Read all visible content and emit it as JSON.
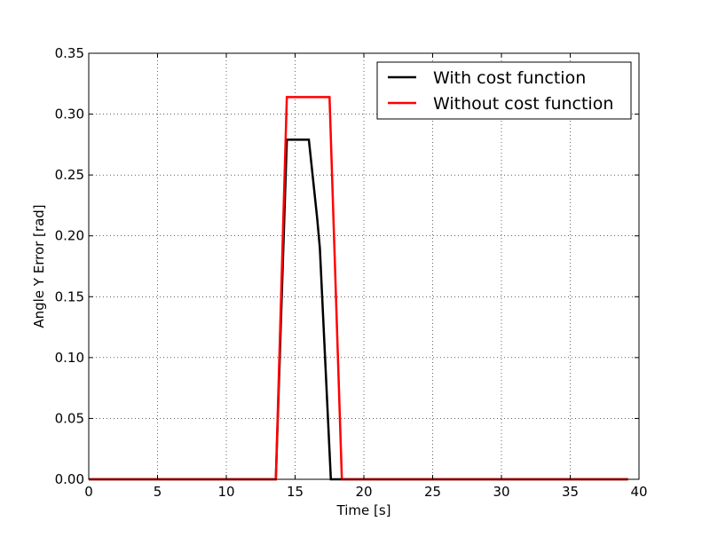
{
  "chart_data": {
    "type": "line",
    "xlabel": "Time [s]",
    "ylabel": "Angle Y Error [rad]",
    "xlim": [
      0,
      40
    ],
    "ylim": [
      0,
      0.35
    ],
    "xticks": [
      0,
      5,
      10,
      15,
      20,
      25,
      30,
      35,
      40
    ],
    "yticks": [
      0.0,
      0.05,
      0.1,
      0.15,
      0.2,
      0.25,
      0.3,
      0.35
    ],
    "xtick_labels": [
      "0",
      "5",
      "10",
      "15",
      "20",
      "25",
      "30",
      "35",
      "40"
    ],
    "ytick_labels": [
      "0.00",
      "0.05",
      "0.10",
      "0.15",
      "0.20",
      "0.25",
      "0.30",
      "0.35"
    ],
    "grid": true,
    "legend_position": "top-right",
    "series": [
      {
        "name": "With cost function",
        "color": "#000000",
        "x": [
          0,
          13.6,
          14.4,
          16.0,
          16.6,
          16.8,
          17.6,
          39.2
        ],
        "y": [
          0,
          0,
          0.279,
          0.279,
          0.215,
          0.19,
          0,
          0
        ]
      },
      {
        "name": "Without cost function",
        "color": "#ff0000",
        "x": [
          0,
          13.6,
          14.4,
          17.5,
          18.4,
          39.2
        ],
        "y": [
          0,
          0,
          0.314,
          0.314,
          0,
          0
        ]
      }
    ]
  }
}
